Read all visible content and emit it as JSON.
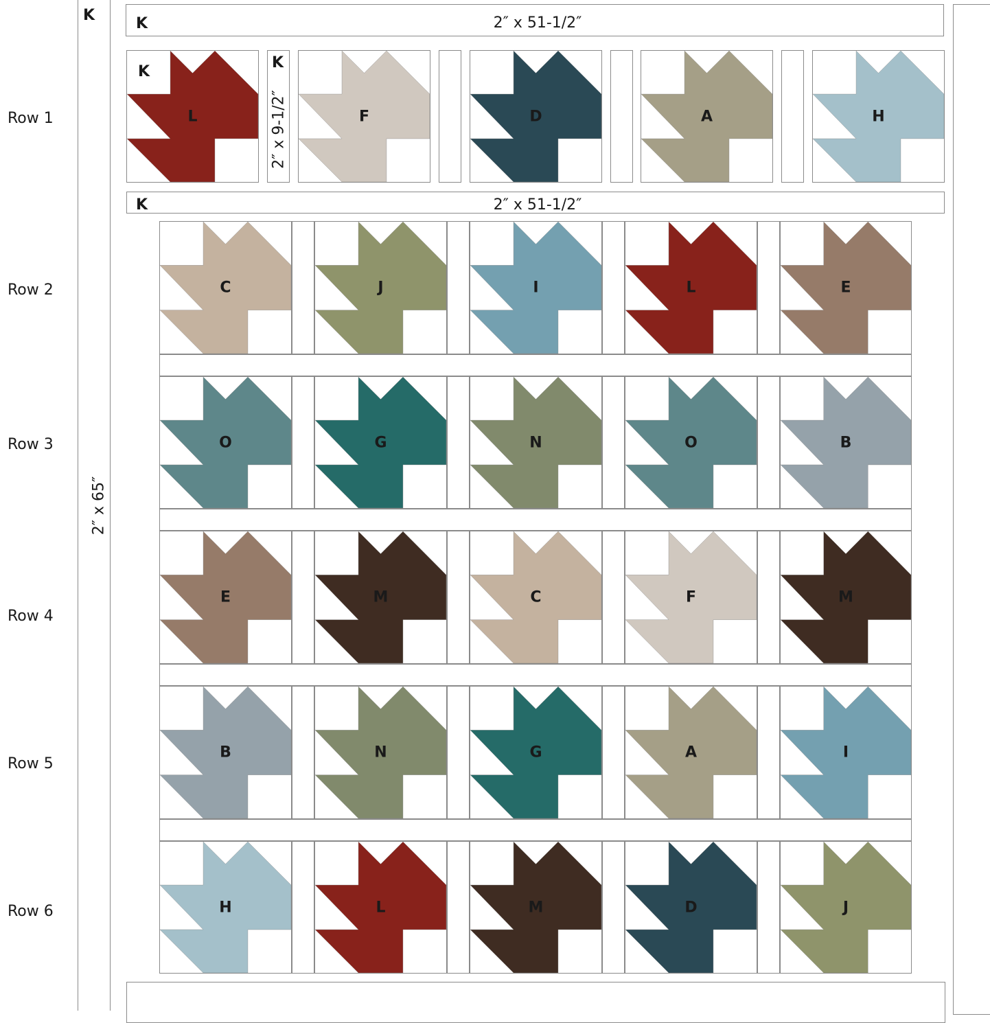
{
  "palette": {
    "A": "#a59f87",
    "B": "#95a2aa",
    "C": "#c4b29f",
    "D": "#2a4955",
    "E": "#967b69",
    "F": "#d0c8bf",
    "G": "#256b68",
    "H": "#a4c0ca",
    "I": "#74a0b0",
    "J": "#8f946b",
    "L": "#88221b",
    "M": "#3f2c22",
    "N": "#818a6c",
    "O": "#5e878a"
  },
  "border_color": "#8a8a8a",
  "sashing": {
    "top_letter": "K",
    "top_size": "2″ x 51-1/2″",
    "second_letter": "K",
    "second_size": "2″ x 51-1/2″",
    "left_letter": "K",
    "left_size": "2″ x 65″",
    "short_letter": "K",
    "short_size": "2″ x 9-1/2″"
  },
  "row1_corner_letter": "K",
  "rows": [
    {
      "label": "Row 1",
      "blocks": [
        "L",
        "F",
        "D",
        "A",
        "H"
      ]
    },
    {
      "label": "Row 2",
      "blocks": [
        "C",
        "J",
        "I",
        "L",
        "E"
      ]
    },
    {
      "label": "Row 3",
      "blocks": [
        "O",
        "G",
        "N",
        "O",
        "B"
      ]
    },
    {
      "label": "Row 4",
      "blocks": [
        "E",
        "M",
        "C",
        "F",
        "M"
      ]
    },
    {
      "label": "Row 5",
      "blocks": [
        "B",
        "N",
        "G",
        "A",
        "I"
      ]
    },
    {
      "label": "Row 6",
      "blocks": [
        "H",
        "L",
        "M",
        "D",
        "J"
      ]
    }
  ]
}
